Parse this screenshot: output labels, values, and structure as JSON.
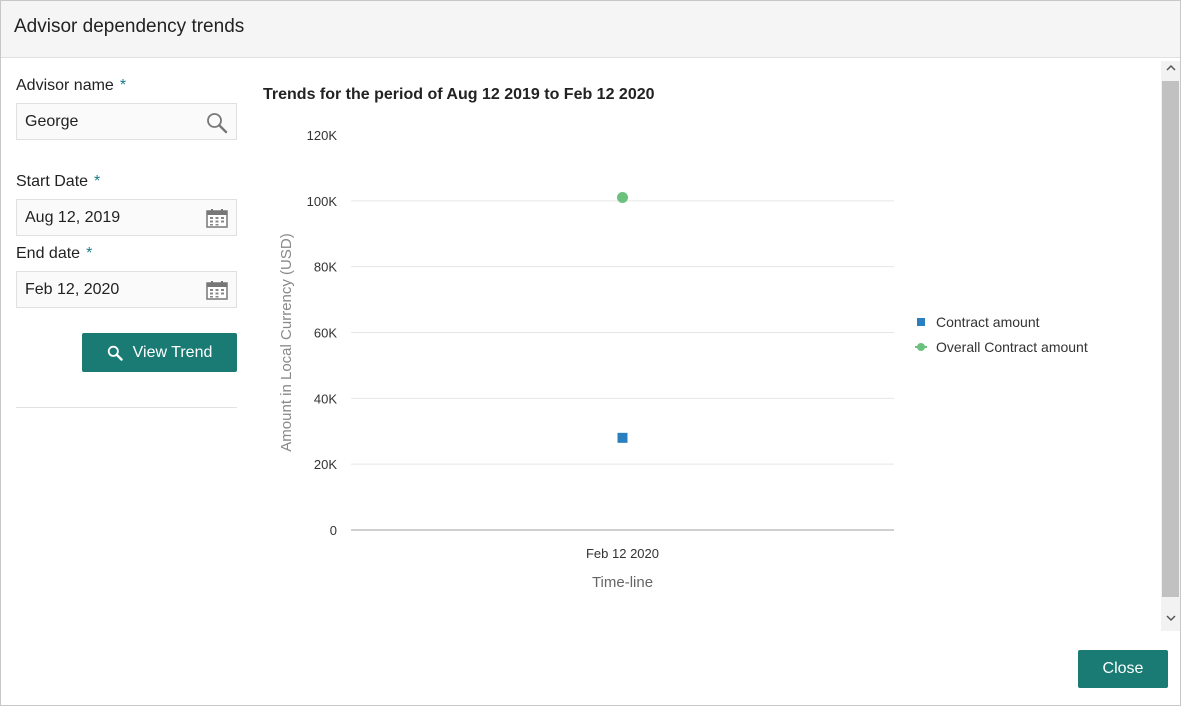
{
  "dialog": {
    "title": "Advisor dependency trends"
  },
  "form": {
    "advisor_label": "Advisor name",
    "advisor_value": "George",
    "start_label": "Start Date",
    "start_value": "Aug 12, 2019",
    "end_label": "End date",
    "end_value": "Feb 12, 2020",
    "required_mark": "*",
    "view_trend_label": "View Trend"
  },
  "icons": {
    "search": "search-icon",
    "calendar": "calendar-icon",
    "scroll_up": "chevron-up-icon",
    "scroll_down": "chevron-down-icon"
  },
  "chart_title": "Trends for the period of Aug 12 2019 to Feb 12 2020",
  "chart_data": {
    "type": "scatter",
    "categories": [
      "Feb 12 2020"
    ],
    "series": [
      {
        "name": "Contract amount",
        "values": [
          28000
        ],
        "color": "#2a7fc0",
        "marker": "square"
      },
      {
        "name": "Overall Contract amount",
        "values": [
          101000
        ],
        "color": "#6cc27d",
        "marker": "circle"
      }
    ],
    "xlabel": "Time-line",
    "ylabel": "Amount in Local Currency (USD)",
    "ylim": [
      0,
      120000
    ],
    "yticks": [
      {
        "value": 0,
        "label": "0"
      },
      {
        "value": 20000,
        "label": "20K"
      },
      {
        "value": 40000,
        "label": "40K"
      },
      {
        "value": 60000,
        "label": "60K"
      },
      {
        "value": 80000,
        "label": "80K"
      },
      {
        "value": 100000,
        "label": "100K"
      },
      {
        "value": 120000,
        "label": "120K"
      }
    ],
    "grid": true,
    "legend_position": "right"
  },
  "footer": {
    "close_label": "Close"
  },
  "colors": {
    "accent": "#197b74",
    "required": "#1b7a8a"
  }
}
